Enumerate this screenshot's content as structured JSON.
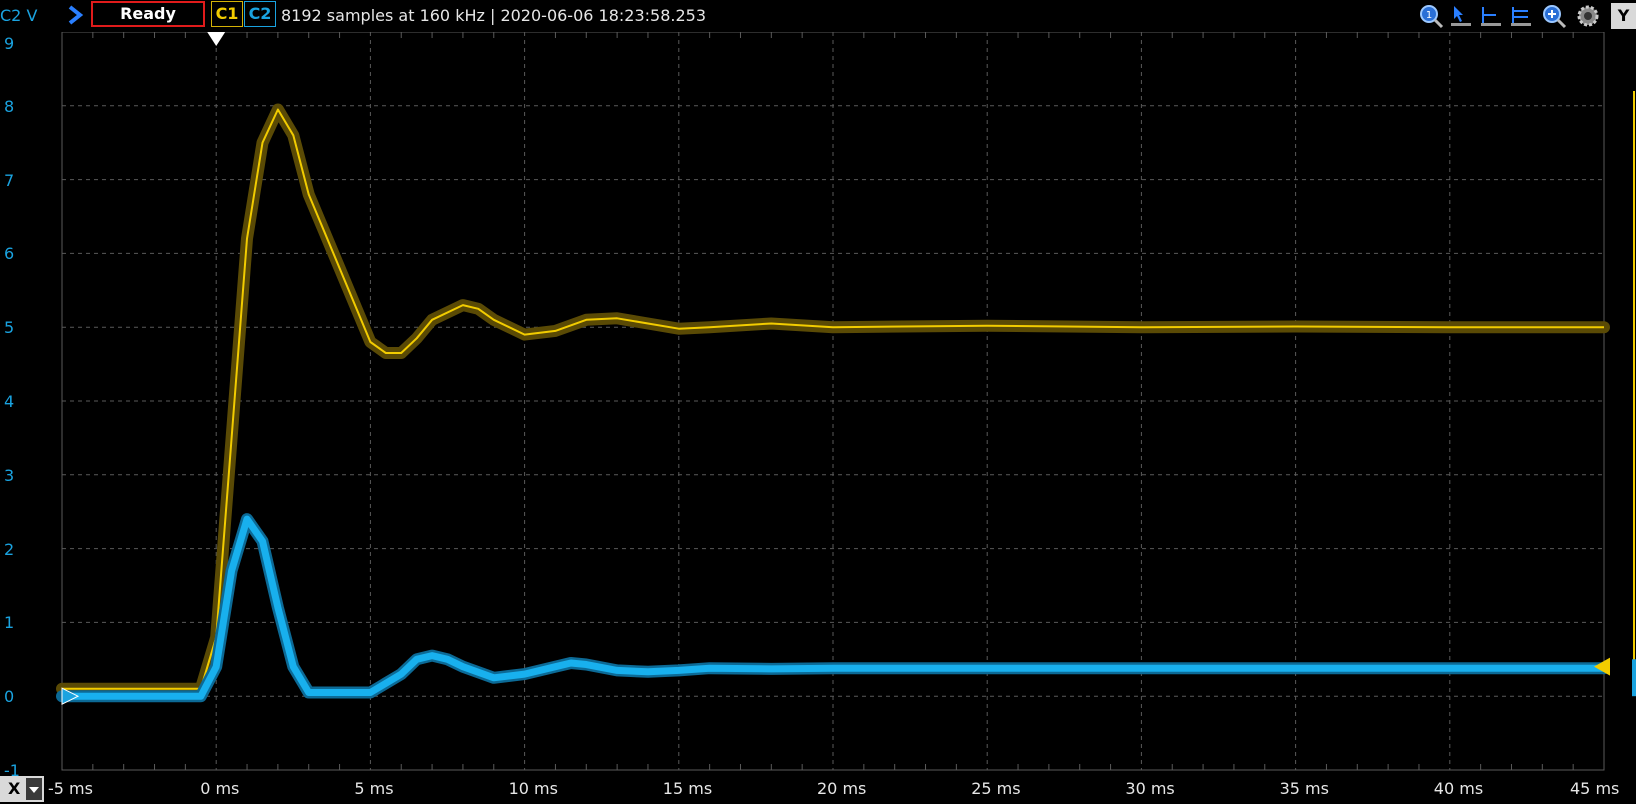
{
  "toolbar": {
    "channel_unit": "C2 V",
    "status": "Ready",
    "ch1_label": "C1",
    "ch2_label": "C2",
    "acquisition_info": "8192 samples at 160 kHz | 2020-06-06 18:23:58.253",
    "y_button": "Y",
    "x_button": "X"
  },
  "colors": {
    "ch1": "#f2cc00",
    "ch2": "#1aa3e0",
    "grid": "#5a5a5a",
    "status_border": "#e01b1b"
  },
  "icons": [
    "run-arrow-icon",
    "zoom-fit-icon",
    "cursor-icon",
    "horizontal-cursor-icon",
    "vertical-cursor-icon",
    "magnify-icon",
    "settings-gear-icon",
    "x-dropdown-icon"
  ],
  "chart_data": {
    "type": "line",
    "title": "",
    "xlabel": "",
    "ylabel": "C2 V",
    "xlim": [
      -5,
      45
    ],
    "ylim": [
      -1,
      9
    ],
    "x_ticks": [
      "-5 ms",
      "0 ms",
      "5 ms",
      "10 ms",
      "15 ms",
      "20 ms",
      "25 ms",
      "30 ms",
      "35 ms",
      "40 ms",
      "45 ms"
    ],
    "y_ticks": [
      "-1",
      "0",
      "1",
      "2",
      "3",
      "4",
      "5",
      "6",
      "7",
      "8",
      "9"
    ],
    "grid": true,
    "series": [
      {
        "key": "C1",
        "x": [
          -5,
          -0.5,
          0,
          0.5,
          1,
          1.5,
          2,
          2.5,
          3,
          4,
          5,
          5.5,
          6,
          6.5,
          7,
          8,
          8.5,
          9,
          10,
          11,
          12,
          13,
          14,
          15,
          16,
          18,
          20,
          25,
          30,
          35,
          40,
          45
        ],
        "y": [
          0.1,
          0.1,
          0.8,
          3.5,
          6.2,
          7.5,
          7.95,
          7.6,
          6.8,
          5.8,
          4.8,
          4.65,
          4.65,
          4.85,
          5.1,
          5.3,
          5.25,
          5.1,
          4.9,
          4.95,
          5.1,
          5.12,
          5.05,
          4.98,
          5.0,
          5.05,
          5.0,
          5.02,
          5.0,
          5.01,
          5.0,
          5.0
        ]
      },
      {
        "key": "C2",
        "x": [
          -5,
          -0.5,
          0,
          0.5,
          1,
          1.5,
          2,
          2.5,
          3,
          4,
          5,
          6,
          6.5,
          7,
          7.5,
          8,
          9,
          10,
          11,
          11.5,
          12,
          13,
          14,
          15,
          16,
          18,
          20,
          25,
          30,
          35,
          40,
          45
        ],
        "y": [
          0.0,
          0.0,
          0.4,
          1.7,
          2.4,
          2.1,
          1.2,
          0.4,
          0.05,
          0.05,
          0.05,
          0.3,
          0.5,
          0.55,
          0.5,
          0.4,
          0.25,
          0.3,
          0.4,
          0.45,
          0.43,
          0.35,
          0.33,
          0.35,
          0.38,
          0.37,
          0.38,
          0.38,
          0.38,
          0.38,
          0.38,
          0.38
        ]
      }
    ]
  }
}
